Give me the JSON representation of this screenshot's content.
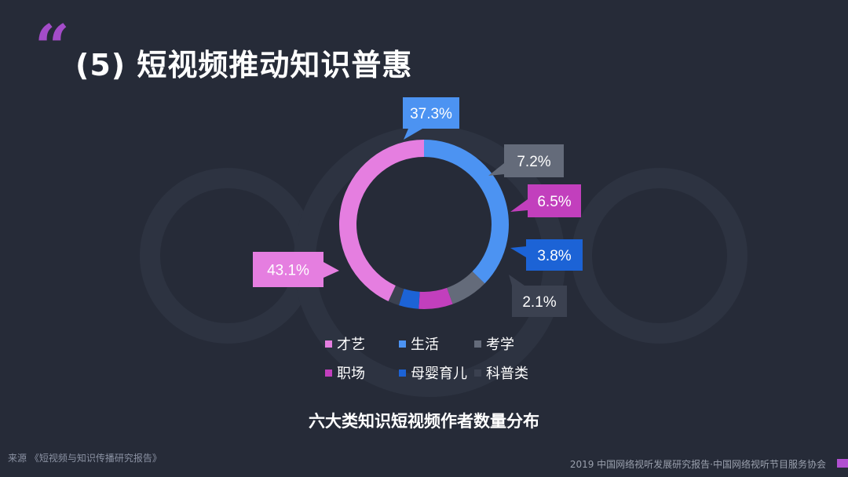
{
  "header": {
    "quote_mark": "“",
    "title": "(5) 短视频推动知识普惠"
  },
  "chart_data": {
    "type": "pie",
    "donut": true,
    "title": "六大类知识短视频作者数量分布",
    "series": [
      {
        "name": "才艺",
        "value": 43.1,
        "label": "43.1%",
        "color": "#e57ee0"
      },
      {
        "name": "生活",
        "value": 37.3,
        "label": "37.3%",
        "color": "#4c93f2"
      },
      {
        "name": "考学",
        "value": 7.2,
        "label": "7.2%",
        "color": "#646b7a"
      },
      {
        "name": "职场",
        "value": 6.5,
        "label": "6.5%",
        "color": "#c23fbd"
      },
      {
        "name": "母婴育儿",
        "value": 3.8,
        "label": "3.8%",
        "color": "#1c63d6"
      },
      {
        "name": "科普类",
        "value": 2.1,
        "label": "2.1%",
        "color": "#3b4150"
      }
    ],
    "legend_position": "bottom-center"
  },
  "source": "来源 《短视频与知识传播研究报告》",
  "footer": "2019 中国网络视听发展研究报告·中国网络视听节目服务协会"
}
